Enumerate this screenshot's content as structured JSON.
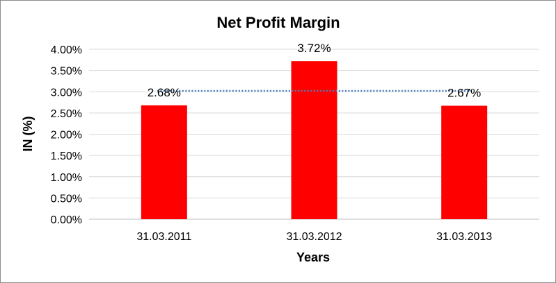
{
  "chart_data": {
    "type": "bar",
    "title": "Net Profit Margin",
    "xlabel": "Years",
    "ylabel": "IN (%)",
    "categories": [
      "31.03.2011",
      "31.03.2012",
      "31.03.2013"
    ],
    "values": [
      2.68,
      3.72,
      2.67
    ],
    "data_labels": [
      "2.68%",
      "3.72%",
      "2.67%"
    ],
    "ylim": [
      0,
      4
    ],
    "y_ticks": [
      0,
      0.5,
      1,
      1.5,
      2,
      2.5,
      3,
      3.5,
      4
    ],
    "y_tick_labels": [
      "0.00%",
      "0.50%",
      "1.00%",
      "1.50%",
      "2.00%",
      "2.50%",
      "3.00%",
      "3.50%",
      "4.00%"
    ],
    "grid": true,
    "bar_color": "#ff0000",
    "trendline": {
      "style": "dotted",
      "color": "#4a7ebb",
      "value": 3.02
    }
  }
}
